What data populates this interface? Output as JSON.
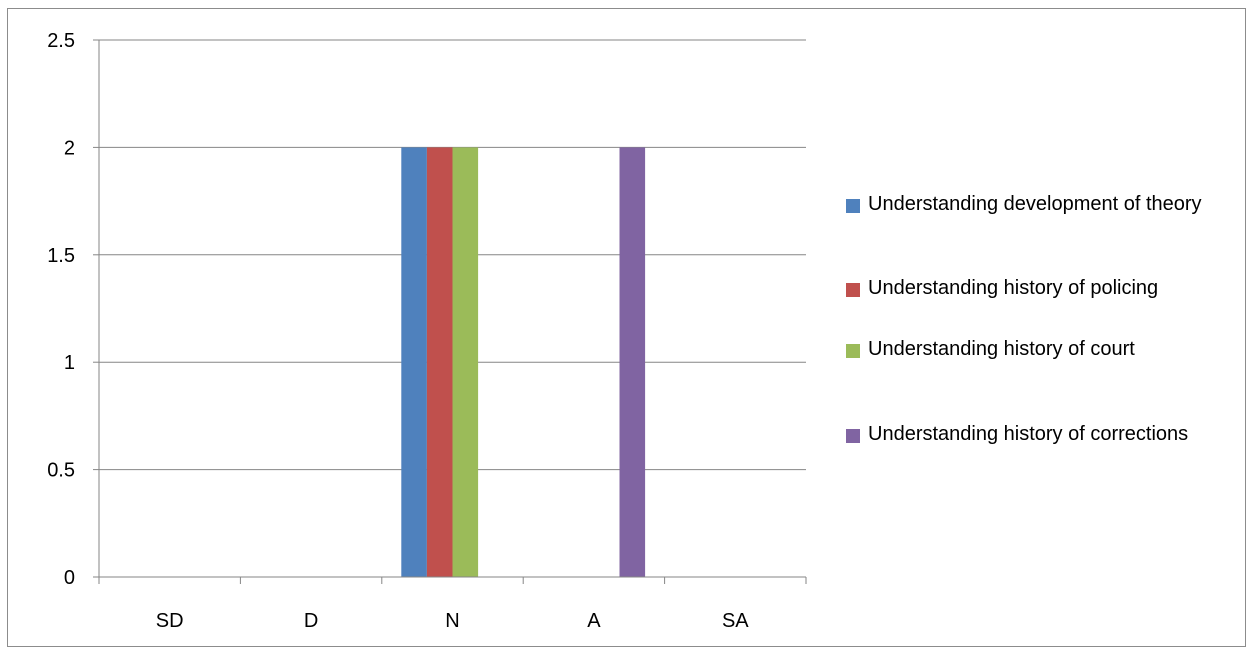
{
  "chart_data": {
    "type": "bar",
    "categories": [
      "SD",
      "D",
      "N",
      "A",
      "SA"
    ],
    "series": [
      {
        "name": "Understanding development of theory",
        "values": [
          0,
          0,
          2,
          0,
          0
        ],
        "color": "#4f81bd"
      },
      {
        "name": "Understanding history of policing",
        "values": [
          0,
          0,
          2,
          0,
          0
        ],
        "color": "#c0504d"
      },
      {
        "name": "Understanding history of court",
        "values": [
          0,
          0,
          2,
          0,
          0
        ],
        "color": "#9bbb59"
      },
      {
        "name": "Understanding history of corrections",
        "values": [
          0,
          0,
          0,
          2,
          0
        ],
        "color": "#8064a2"
      }
    ],
    "yticks": [
      "0",
      "0.5",
      "1",
      "1.5",
      "2",
      "2.5"
    ],
    "ylim": [
      0,
      2.5
    ],
    "grid": true,
    "legend_position": "right",
    "title": "",
    "xlabel": "",
    "ylabel": ""
  }
}
